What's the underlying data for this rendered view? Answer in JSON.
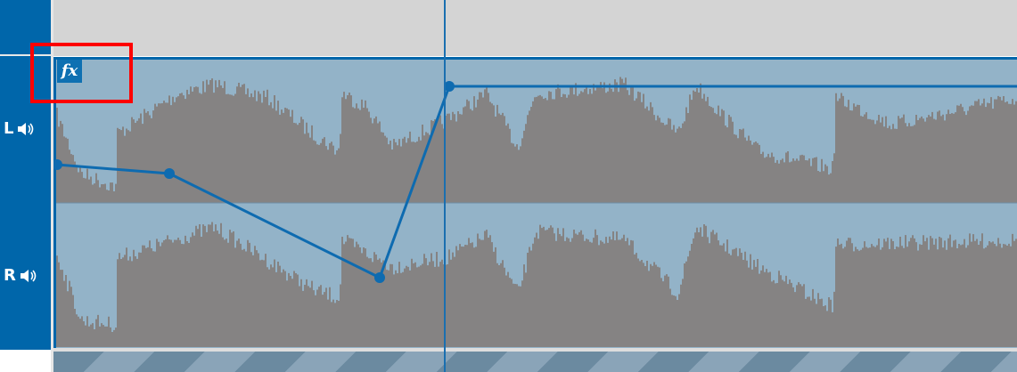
{
  "track": {
    "channels": [
      {
        "label": "L",
        "icon": "speaker-icon"
      },
      {
        "label": "R",
        "icon": "speaker-icon"
      }
    ],
    "clip": {
      "effect_badge": "fx"
    },
    "colors": {
      "accent": "#0066aa",
      "waveform": "#858383",
      "clip_background": "#93b3c8",
      "highlight": "#ff0000"
    }
  }
}
